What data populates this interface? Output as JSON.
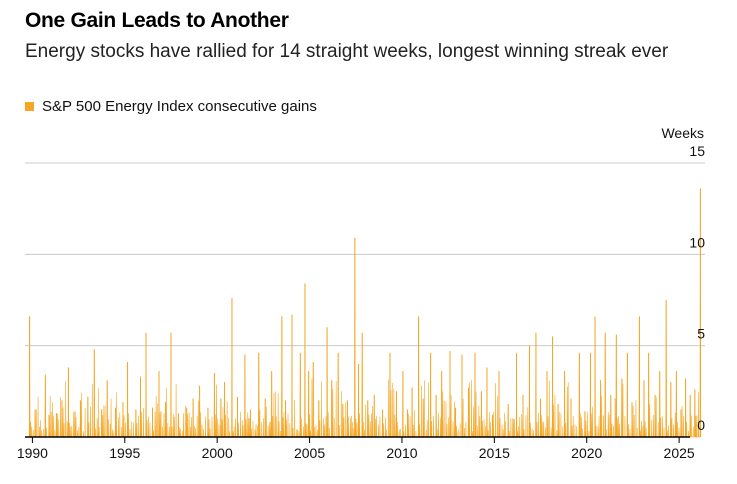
{
  "title": "One Gain Leads to Another",
  "subtitle": "Energy stocks have rallied for 14 straight weeks, longest winning streak ever",
  "legend": {
    "label": "S&P 500 Energy Index consecutive gains",
    "color": "#F5A623"
  },
  "units_label": "Weeks",
  "colors": {
    "area": "#F5A623",
    "grid": "#cccccc",
    "axis": "#000000"
  },
  "chart_data": {
    "type": "area",
    "title": "One Gain Leads to Another",
    "subtitle": "Energy stocks have rallied for 14 straight weeks, longest winning streak ever",
    "ylabel": "Weeks",
    "ylim": [
      0,
      15
    ],
    "xlim": [
      1989.6,
      2026.4
    ],
    "yticks": [
      0,
      5,
      10,
      15
    ],
    "xticks": [
      1990,
      1995,
      2000,
      2005,
      2010,
      2015,
      2020,
      2025
    ],
    "grid": true,
    "legend_position": "top-left",
    "series": [
      {
        "name": "S&P 500 Energy Index consecutive gains",
        "peaks": [
          [
            1989.85,
            6.6
          ],
          [
            1990.15,
            1.5
          ],
          [
            1990.7,
            3.4
          ],
          [
            1990.9,
            1.2
          ],
          [
            1991.3,
            1.3
          ],
          [
            1991.6,
            2.0
          ],
          [
            1991.95,
            3.8
          ],
          [
            1992.3,
            1.4
          ],
          [
            1992.6,
            2.0
          ],
          [
            1993.0,
            2.2
          ],
          [
            1993.35,
            4.8
          ],
          [
            1993.75,
            1.5
          ],
          [
            1994.05,
            3.1
          ],
          [
            1994.5,
            1.6
          ],
          [
            1994.9,
            1.9
          ],
          [
            1995.15,
            4.1
          ],
          [
            1995.6,
            1.5
          ],
          [
            1995.85,
            3.3
          ],
          [
            1996.15,
            5.7
          ],
          [
            1996.5,
            1.6
          ],
          [
            1996.85,
            3.6
          ],
          [
            1997.2,
            1.9
          ],
          [
            1997.5,
            5.7
          ],
          [
            1997.9,
            1.3
          ],
          [
            1998.35,
            1.6
          ],
          [
            1998.7,
            2.1
          ],
          [
            1999.05,
            2.8
          ],
          [
            1999.5,
            1.6
          ],
          [
            1999.85,
            3.5
          ],
          [
            2000.2,
            2.1
          ],
          [
            2000.4,
            3.0
          ],
          [
            2000.8,
            7.6
          ],
          [
            2001.1,
            2.2
          ],
          [
            2001.5,
            4.5
          ],
          [
            2001.8,
            1.5
          ],
          [
            2002.25,
            4.6
          ],
          [
            2002.6,
            2.1
          ],
          [
            2002.95,
            3.6
          ],
          [
            2003.5,
            6.6
          ],
          [
            2003.7,
            2.0
          ],
          [
            2004.05,
            6.7
          ],
          [
            2004.5,
            4.6
          ],
          [
            2004.75,
            8.4
          ],
          [
            2004.95,
            3.6
          ],
          [
            2005.2,
            4.1
          ],
          [
            2005.5,
            2.0
          ],
          [
            2005.95,
            6.0
          ],
          [
            2006.2,
            3.1
          ],
          [
            2006.55,
            4.6
          ],
          [
            2006.8,
            1.8
          ],
          [
            2007.05,
            2.0
          ],
          [
            2007.45,
            10.9
          ],
          [
            2007.65,
            4.0
          ],
          [
            2007.85,
            5.7
          ],
          [
            2008.15,
            2.0
          ],
          [
            2008.5,
            2.3
          ],
          [
            2008.95,
            1.5
          ],
          [
            2009.35,
            4.6
          ],
          [
            2009.7,
            2.5
          ],
          [
            2010.05,
            3.6
          ],
          [
            2010.3,
            1.5
          ],
          [
            2010.55,
            2.7
          ],
          [
            2010.9,
            6.6
          ],
          [
            2011.15,
            2.1
          ],
          [
            2011.55,
            4.6
          ],
          [
            2011.85,
            2.3
          ],
          [
            2012.15,
            3.6
          ],
          [
            2012.6,
            4.7
          ],
          [
            2012.9,
            1.6
          ],
          [
            2013.25,
            4.5
          ],
          [
            2013.6,
            2.7
          ],
          [
            2013.95,
            4.6
          ],
          [
            2014.3,
            2.5
          ],
          [
            2014.6,
            3.8
          ],
          [
            2014.9,
            1.2
          ],
          [
            2015.25,
            3.6
          ],
          [
            2015.75,
            1.8
          ],
          [
            2016.2,
            4.6
          ],
          [
            2016.55,
            2.3
          ],
          [
            2016.9,
            5.0
          ],
          [
            2017.25,
            5.7
          ],
          [
            2017.5,
            2.1
          ],
          [
            2017.85,
            3.6
          ],
          [
            2018.15,
            5.5
          ],
          [
            2018.45,
            1.8
          ],
          [
            2018.8,
            3.6
          ],
          [
            2019.15,
            2.1
          ],
          [
            2019.6,
            4.6
          ],
          [
            2019.9,
            1.4
          ],
          [
            2020.2,
            4.6
          ],
          [
            2020.45,
            6.6
          ],
          [
            2020.75,
            3.1
          ],
          [
            2021.0,
            5.7
          ],
          [
            2021.3,
            2.3
          ],
          [
            2021.6,
            5.6
          ],
          [
            2021.9,
            3.2
          ],
          [
            2022.2,
            4.6
          ],
          [
            2022.45,
            1.9
          ],
          [
            2022.85,
            6.6
          ],
          [
            2023.1,
            3.1
          ],
          [
            2023.35,
            4.6
          ],
          [
            2023.7,
            2.3
          ],
          [
            2023.95,
            3.6
          ],
          [
            2024.3,
            7.5
          ],
          [
            2024.55,
            3.0
          ],
          [
            2024.85,
            3.6
          ],
          [
            2025.1,
            1.5
          ],
          [
            2025.35,
            3.2
          ],
          [
            2025.6,
            2.3
          ],
          [
            2025.85,
            2.6
          ],
          [
            2026.15,
            13.6
          ]
        ]
      }
    ]
  }
}
